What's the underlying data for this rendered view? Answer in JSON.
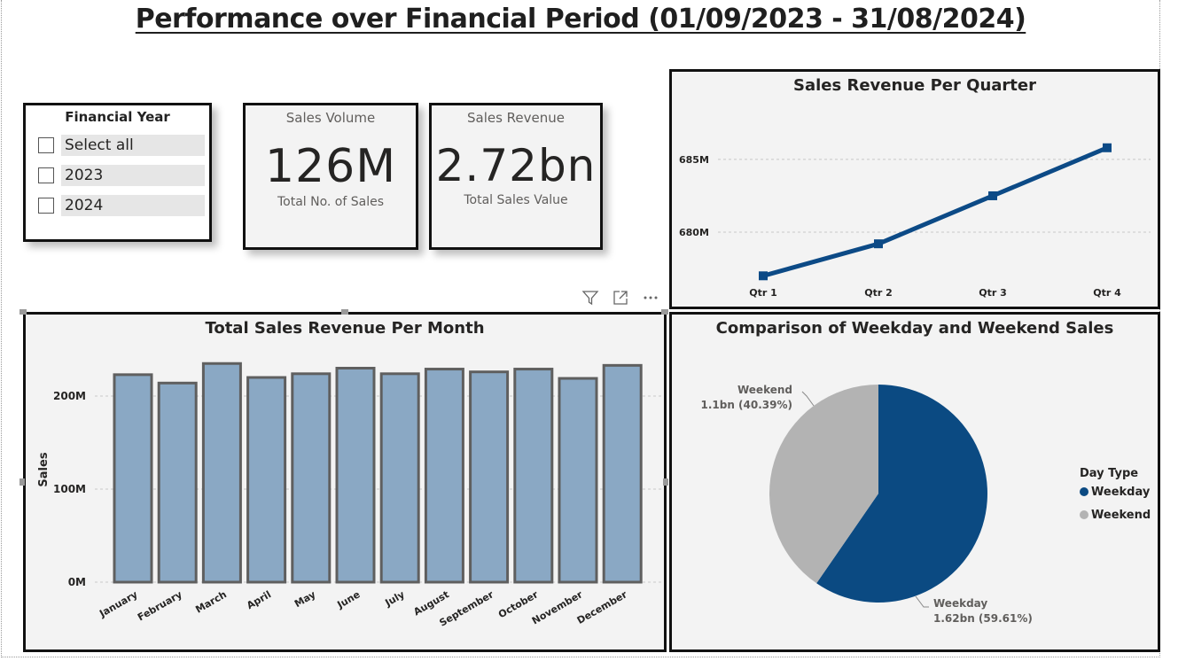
{
  "page": {
    "title": "Performance over Financial Period (01/09/2023 - 31/08/2024)"
  },
  "slicer": {
    "title": "Financial Year",
    "items": [
      {
        "label": "Select all",
        "checked": false
      },
      {
        "label": "2023",
        "checked": false
      },
      {
        "label": "2024",
        "checked": false
      }
    ]
  },
  "cards": {
    "volume": {
      "title": "Sales Volume",
      "value": "126M",
      "subtitle": "Total No. of Sales"
    },
    "revenue": {
      "title": "Sales Revenue",
      "value": "2.72bn",
      "subtitle": "Total Sales Value"
    }
  },
  "visual_header": {
    "icons": [
      "filter-icon",
      "focus-mode-icon",
      "more-options-icon"
    ]
  },
  "colors": {
    "line": "#0c4a86",
    "bar_fill": "#8aa8c4",
    "bar_stroke": "#5f5f5f",
    "weekday": "#0b4a82",
    "weekend": "#b3b3b3"
  },
  "chart_data": [
    {
      "id": "quarter",
      "type": "line",
      "title": "Sales Revenue Per Quarter",
      "categories": [
        "Qtr 1",
        "Qtr 2",
        "Qtr 3",
        "Qtr 4"
      ],
      "values": [
        677.0,
        679.2,
        682.5,
        685.8
      ],
      "y_ticks": [
        680,
        685
      ],
      "y_tick_labels": [
        "680M",
        "685M"
      ],
      "ylim": [
        675.8,
        688.1
      ],
      "grid": true
    },
    {
      "id": "month",
      "type": "bar",
      "title": "Total Sales Revenue Per Month",
      "ylabel": "Sales",
      "categories": [
        "January",
        "February",
        "March",
        "April",
        "May",
        "June",
        "July",
        "August",
        "September",
        "October",
        "November",
        "December"
      ],
      "values": [
        223,
        214,
        235,
        220,
        224,
        230,
        224,
        229,
        226,
        229,
        219,
        233
      ],
      "y_ticks": [
        0,
        100,
        200
      ],
      "y_tick_labels": [
        "0M",
        "100M",
        "200M"
      ],
      "ylim": [
        0,
        245
      ],
      "grid": true
    },
    {
      "id": "daytype",
      "type": "pie",
      "title": "Comparison of Weekday and Weekend Sales",
      "legend_title": "Day Type",
      "legend_position": "right",
      "slices": [
        {
          "name": "Weekday",
          "value": 1.62,
          "percent": 59.61,
          "label": "1.62bn (59.61%)"
        },
        {
          "name": "Weekend",
          "value": 1.1,
          "percent": 40.39,
          "label": "1.1bn (40.39%)"
        }
      ]
    }
  ]
}
